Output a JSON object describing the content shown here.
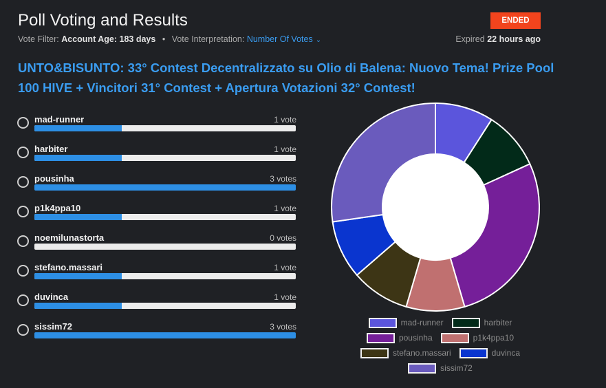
{
  "header": {
    "title": "Poll Voting and Results",
    "status_badge": "ENDED",
    "filter_label": "Vote Filter:",
    "filter_name": "Account Age:",
    "filter_value": "183 days",
    "interp_label": "Vote Interpretation:",
    "interp_value": "Number Of Votes",
    "expired_label": "Expired",
    "expired_value": "22 hours ago"
  },
  "question": "UNTO&BISUNTO: 33° Contest Decentralizzato su Olio di Balena: Nuovo Tema! Prize Pool 100 HIVE + Vincitori 31° Contest + Apertura Votazioni 32° Contest!",
  "colors": {
    "accent": "#2d8fe5",
    "badge": "#f2441d"
  },
  "chart_data": {
    "type": "pie",
    "categories": [
      "mad-runner",
      "harbiter",
      "pousinha",
      "p1k4ppa10",
      "noemilunastorta",
      "stefano.massari",
      "duvinca",
      "sissim72"
    ],
    "values": [
      1,
      1,
      3,
      1,
      0,
      1,
      1,
      3
    ],
    "vote_labels": [
      "1 vote",
      "1 vote",
      "3 votes",
      "1 vote",
      "0 votes",
      "1 vote",
      "1 vote",
      "3 votes"
    ],
    "max_votes": 3,
    "colors": [
      "#5b55dc",
      "#022a19",
      "#751f99",
      "#c07070",
      "#4a4a4a",
      "#3d3515",
      "#0a35cf",
      "#6a5bbd"
    ],
    "legend": [
      {
        "name": "mad-runner",
        "color": "#5b55dc"
      },
      {
        "name": "harbiter",
        "color": "#022a19"
      },
      {
        "name": "pousinha",
        "color": "#751f99"
      },
      {
        "name": "p1k4ppa10",
        "color": "#c07070"
      },
      {
        "name": "stefano.massari",
        "color": "#3d3515"
      },
      {
        "name": "duvinca",
        "color": "#0a35cf"
      },
      {
        "name": "sissim72",
        "color": "#6a5bbd"
      }
    ]
  }
}
